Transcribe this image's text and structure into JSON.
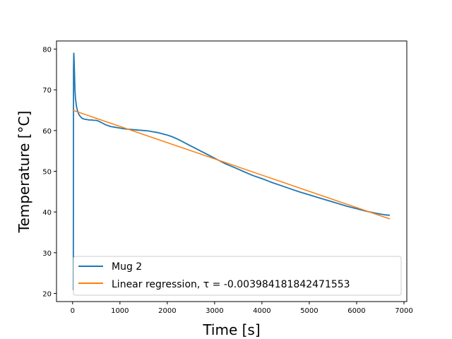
{
  "chart_data": {
    "type": "line",
    "title": "",
    "xlabel": "Time [s]",
    "ylabel": "Temperature [°C]",
    "xlim": [
      -340,
      7060
    ],
    "ylim": [
      18,
      82
    ],
    "xticks": [
      0,
      1000,
      2000,
      3000,
      4000,
      5000,
      6000,
      7000
    ],
    "yticks": [
      20,
      30,
      40,
      50,
      60,
      70,
      80
    ],
    "grid": false,
    "legend_position": "lower-left",
    "series": [
      {
        "name": "Mug 2",
        "color": "#1f77b4",
        "x": [
          0,
          5,
          10,
          15,
          20,
          25,
          30,
          40,
          50,
          60,
          80,
          100,
          130,
          160,
          200,
          250,
          300,
          350,
          400,
          450,
          500,
          550,
          600,
          650,
          700,
          750,
          800,
          900,
          1000,
          1100,
          1200,
          1300,
          1400,
          1500,
          1600,
          1700,
          1800,
          1900,
          2000,
          2100,
          2200,
          2300,
          2400,
          2500,
          2600,
          2700,
          2800,
          2900,
          3000,
          3100,
          3200,
          3300,
          3400,
          3500,
          3600,
          3700,
          3800,
          3900,
          4000,
          4200,
          4400,
          4600,
          4800,
          5000,
          5200,
          5400,
          5600,
          5800,
          6000,
          6200,
          6400,
          6600,
          6700
        ],
        "y": [
          21,
          21,
          21,
          21,
          75,
          79,
          78,
          74,
          70,
          68,
          66,
          65,
          64,
          63.5,
          63,
          62.8,
          62.7,
          62.6,
          62.6,
          62.5,
          62.5,
          62.3,
          62,
          61.7,
          61.4,
          61.2,
          61,
          60.8,
          60.6,
          60.4,
          60.3,
          60.2,
          60.1,
          60,
          59.9,
          59.7,
          59.5,
          59.2,
          58.9,
          58.5,
          58,
          57.4,
          56.8,
          56.2,
          55.6,
          55,
          54.4,
          53.8,
          53.2,
          52.6,
          52,
          51.5,
          51,
          50.5,
          50,
          49.5,
          49,
          48.6,
          48.2,
          47.3,
          46.5,
          45.7,
          44.9,
          44.2,
          43.5,
          42.8,
          42.1,
          41.4,
          40.8,
          40.2,
          39.7,
          39.3,
          39.2
        ]
      },
      {
        "name": "Linear regression, τ = -0.003984181842471553",
        "color": "#ff7f0e",
        "x": [
          0,
          6700
        ],
        "y": [
          65,
          38.3
        ]
      }
    ]
  }
}
